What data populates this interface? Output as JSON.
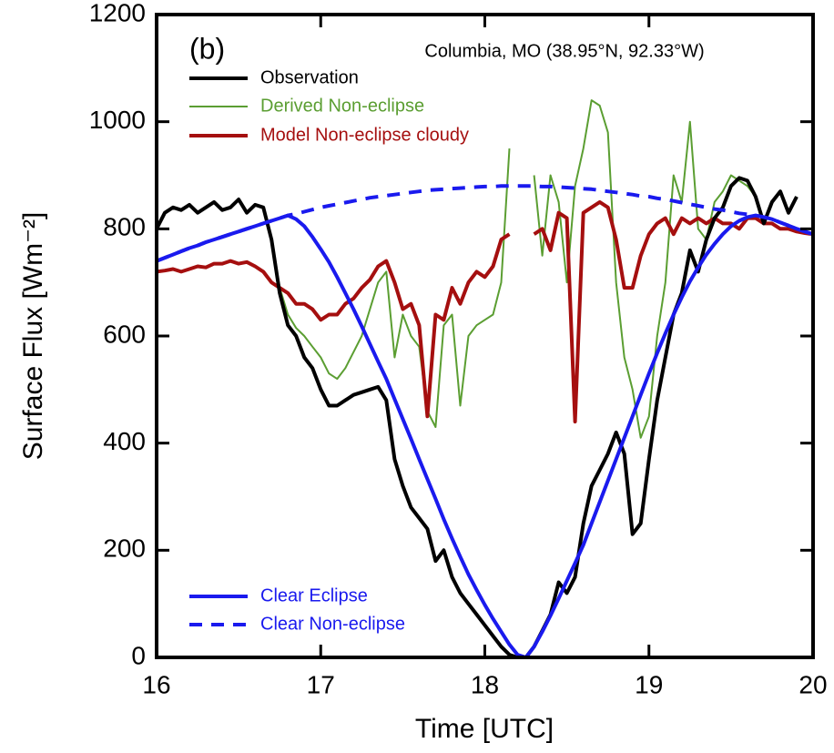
{
  "chart_data": {
    "type": "line",
    "panel_label": "(b)",
    "annotation": "Columbia, MO (38.95°N, 92.33°W)",
    "x_label": "Time [UTC]",
    "y_label": "Surface Flux [Wm⁻²]",
    "xlim": [
      16,
      20
    ],
    "ylim": [
      0,
      1200
    ],
    "xticks": [
      16,
      17,
      18,
      19,
      20
    ],
    "yticks": [
      0,
      200,
      400,
      600,
      800,
      1000,
      1200
    ],
    "x": [
      16,
      16.05,
      16.1,
      16.15,
      16.2,
      16.25,
      16.3,
      16.35,
      16.4,
      16.45,
      16.5,
      16.55,
      16.6,
      16.65,
      16.7,
      16.75,
      16.8,
      16.85,
      16.9,
      16.95,
      17,
      17.05,
      17.1,
      17.15,
      17.2,
      17.25,
      17.3,
      17.35,
      17.4,
      17.45,
      17.5,
      17.55,
      17.6,
      17.65,
      17.7,
      17.75,
      17.8,
      17.85,
      17.9,
      17.95,
      18,
      18.05,
      18.1,
      18.15,
      18.2,
      18.25,
      18.3,
      18.35,
      18.4,
      18.45,
      18.5,
      18.55,
      18.6,
      18.65,
      18.7,
      18.75,
      18.8,
      18.85,
      18.9,
      18.95,
      19,
      19.05,
      19.1,
      19.15,
      19.2,
      19.25,
      19.3,
      19.35,
      19.4,
      19.45,
      19.5,
      19.55,
      19.6,
      19.65,
      19.7,
      19.75,
      19.8,
      19.85,
      19.9,
      19.95,
      20
    ],
    "series": [
      {
        "name": "Observation",
        "color": "#000000",
        "width": 4,
        "dash": false,
        "values": [
          800,
          830,
          840,
          835,
          845,
          830,
          840,
          850,
          835,
          840,
          855,
          830,
          845,
          840,
          780,
          680,
          620,
          600,
          560,
          540,
          500,
          470,
          470,
          480,
          490,
          495,
          500,
          505,
          480,
          370,
          320,
          280,
          260,
          240,
          180,
          200,
          150,
          120,
          100,
          80,
          60,
          40,
          20,
          5,
          0,
          0,
          20,
          50,
          80,
          140,
          120,
          150,
          250,
          320,
          350,
          380,
          420,
          380,
          230,
          250,
          370,
          480,
          560,
          640,
          680,
          760,
          720,
          780,
          820,
          840,
          880,
          895,
          890,
          860,
          810,
          850,
          870,
          830,
          860,
          null,
          null
        ]
      },
      {
        "name": "Derived Non-eclipse",
        "color": "#5b9e32",
        "width": 2,
        "dash": false,
        "values": [
          800,
          830,
          840,
          835,
          845,
          830,
          840,
          850,
          835,
          840,
          855,
          830,
          845,
          840,
          780,
          690,
          640,
          615,
          600,
          580,
          560,
          530,
          520,
          540,
          570,
          600,
          650,
          700,
          720,
          560,
          640,
          600,
          580,
          460,
          430,
          620,
          640,
          470,
          600,
          620,
          630,
          640,
          700,
          950,
          null,
          null,
          900,
          750,
          900,
          850,
          700,
          880,
          950,
          1040,
          1030,
          980,
          700,
          560,
          500,
          410,
          450,
          600,
          700,
          900,
          850,
          1000,
          800,
          780,
          850,
          870,
          900,
          890,
          880,
          860,
          810,
          850,
          870,
          830,
          860,
          null,
          null
        ]
      },
      {
        "name": "Model Non-eclipse cloudy",
        "color": "#a50f0f",
        "width": 4,
        "dash": false,
        "values": [
          720,
          722,
          725,
          720,
          725,
          730,
          728,
          735,
          735,
          740,
          735,
          738,
          730,
          720,
          700,
          690,
          680,
          660,
          660,
          650,
          630,
          640,
          640,
          660,
          670,
          690,
          705,
          730,
          740,
          700,
          650,
          660,
          620,
          450,
          640,
          630,
          690,
          660,
          700,
          720,
          710,
          730,
          780,
          790,
          null,
          null,
          790,
          800,
          760,
          830,
          820,
          440,
          830,
          840,
          850,
          840,
          780,
          690,
          690,
          750,
          790,
          810,
          820,
          790,
          820,
          810,
          820,
          810,
          820,
          810,
          810,
          800,
          820,
          820,
          810,
          810,
          800,
          800,
          795,
          792,
          790
        ]
      },
      {
        "name": "Clear Eclipse",
        "color": "#1a1aee",
        "width": 4,
        "dash": false,
        "values": [
          740,
          746,
          752,
          758,
          764,
          769,
          775,
          780,
          785,
          790,
          795,
          800,
          805,
          810,
          815,
          820,
          825,
          818,
          805,
          785,
          762,
          738,
          710,
          680,
          650,
          618,
          585,
          552,
          520,
          482,
          445,
          408,
          370,
          333,
          296,
          258,
          222,
          188,
          155,
          126,
          98,
          72,
          48,
          24,
          5,
          0,
          20,
          48,
          78,
          110,
          143,
          176,
          210,
          250,
          290,
          330,
          370,
          410,
          450,
          490,
          530,
          568,
          605,
          640,
          672,
          702,
          728,
          752,
          772,
          790,
          805,
          815,
          822,
          825,
          822,
          818,
          812,
          806,
          800,
          795,
          790
        ]
      },
      {
        "name": "Clear Non-eclipse",
        "color": "#1a1aee",
        "width": 4,
        "dash": true,
        "values": [
          740,
          746,
          752,
          758,
          764,
          769,
          775,
          780,
          785,
          790,
          795,
          800,
          805,
          810,
          815,
          820,
          825,
          828,
          832,
          836,
          840,
          843,
          846,
          849,
          852,
          855,
          858,
          860,
          862,
          864,
          866,
          868,
          870,
          872,
          873,
          874,
          875,
          876,
          877,
          878,
          879,
          879,
          880,
          880,
          880,
          880,
          880,
          879,
          879,
          878,
          877,
          876,
          875,
          874,
          872,
          870,
          868,
          866,
          864,
          861,
          860,
          857,
          855,
          852,
          849,
          846,
          843,
          840,
          837,
          835,
          832,
          829,
          827,
          825,
          822,
          818,
          812,
          806,
          800,
          795,
          790
        ]
      }
    ]
  }
}
